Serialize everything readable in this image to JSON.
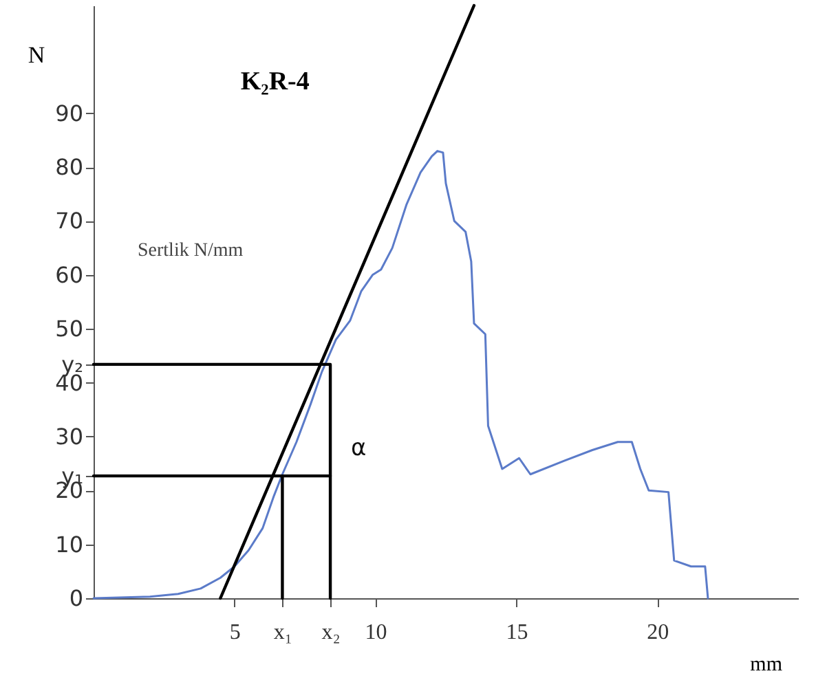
{
  "chart_data": {
    "type": "line",
    "title": "K₂R-4",
    "xlabel": "mm",
    "ylabel": "N",
    "annotations": [
      "Sertlik N/mm",
      "α"
    ],
    "xlim": [
      0,
      25
    ],
    "ylim": [
      0,
      110
    ],
    "xticks": [
      5,
      10,
      15,
      20,
      {
        "value": 6.7,
        "label": "x₁"
      },
      {
        "value": 8.4,
        "label": "x₂"
      }
    ],
    "yticks": [
      0,
      10,
      20,
      30,
      40,
      50,
      60,
      70,
      80,
      90,
      {
        "value": 22.7,
        "label": "y₁"
      },
      {
        "value": 43.4,
        "label": "y₂"
      }
    ],
    "grid": false,
    "series": [
      {
        "color": "#5b7bc9",
        "x": [
          0,
          2.0,
          3.0,
          3.8,
          4.5,
          5.0,
          5.5,
          6.0,
          6.4,
          6.7,
          7.2,
          7.7,
          8.1,
          8.6,
          9.1,
          9.5,
          9.9,
          10.2,
          10.6,
          11.1,
          11.6,
          12.0,
          12.2,
          12.4,
          12.5,
          12.8,
          13.2,
          13.4,
          13.5,
          13.9,
          14.0,
          14.5,
          15.1,
          15.5,
          16.7,
          17.7,
          18.6,
          19.1,
          19.4,
          19.7,
          20.4,
          20.6,
          21.2,
          21.7,
          21.8
        ],
        "values": [
          0,
          0.3,
          0.8,
          1.8,
          3.8,
          5.9,
          8.9,
          13,
          19,
          23,
          29,
          36,
          42,
          48,
          51.5,
          57,
          60,
          61,
          65,
          73,
          79,
          82,
          83,
          82.7,
          77,
          70,
          68,
          62.5,
          51,
          49,
          32,
          24,
          26,
          23,
          25.5,
          27.5,
          29,
          29,
          24,
          20,
          19.7,
          7,
          5.9,
          5.9,
          0
        ]
      },
      {
        "color": "#000000",
        "x": [
          4.5,
          13.5
        ],
        "values": [
          0,
          110
        ]
      },
      {
        "color": "#000000",
        "x": [
          0,
          8.4,
          8.4
        ],
        "values": [
          43.4,
          43.4,
          0
        ]
      },
      {
        "color": "#000000",
        "x": [
          0,
          8.4
        ],
        "values": [
          22.7,
          22.7
        ]
      },
      {
        "color": "#000000",
        "x": [
          6.7,
          6.7
        ],
        "values": [
          22.7,
          0
        ]
      }
    ]
  }
}
